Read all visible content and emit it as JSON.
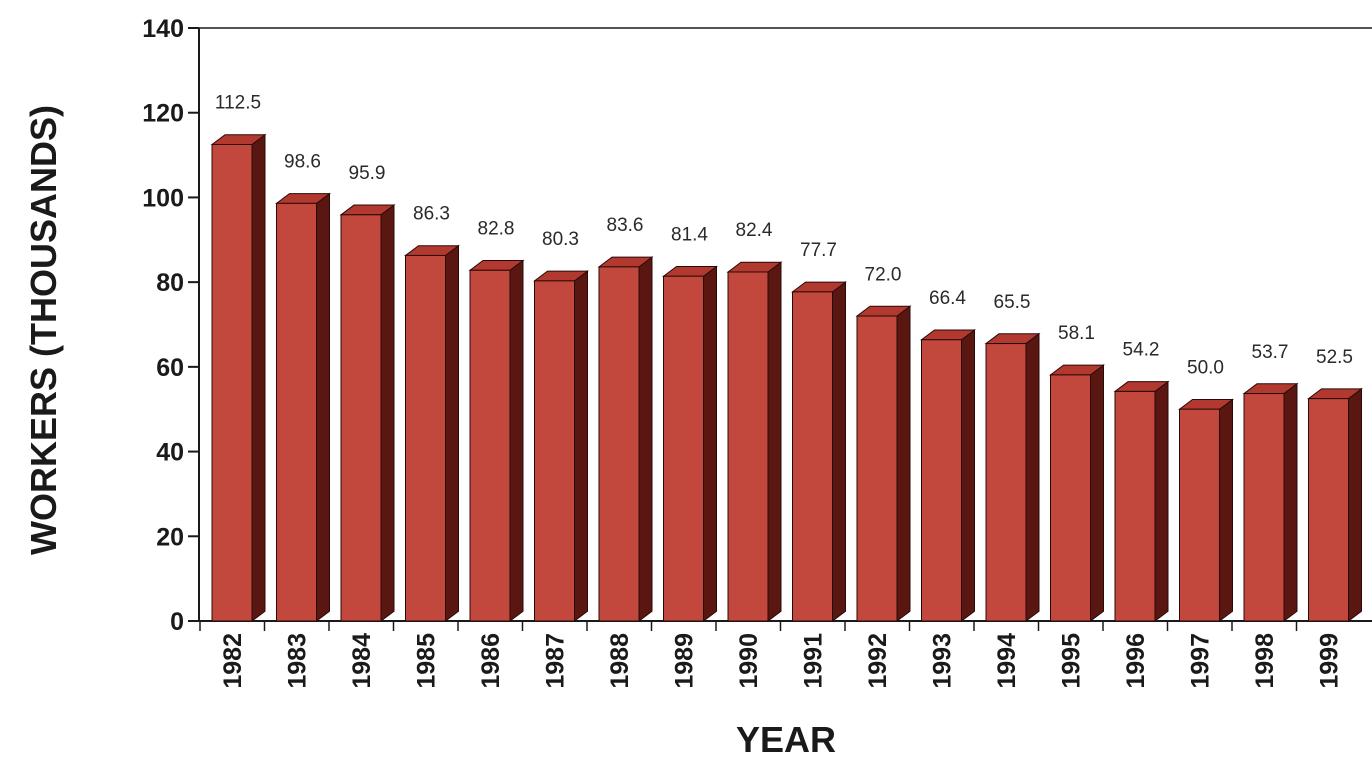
{
  "chart_data": {
    "type": "bar",
    "title": "",
    "xlabel": "YEAR",
    "ylabel": "WORKERS (THOUSANDS)",
    "ylim": [
      0,
      140
    ],
    "yticks": [
      "0",
      "20",
      "40",
      "60",
      "80",
      "100",
      "120",
      "140"
    ],
    "categories": [
      "1982",
      "1983",
      "1984",
      "1985",
      "1986",
      "1987",
      "1988",
      "1989",
      "1990",
      "1991",
      "1992",
      "1993",
      "1994",
      "1995",
      "1996",
      "1997",
      "1998",
      "1999"
    ],
    "values": [
      112.5,
      98.6,
      95.9,
      86.3,
      82.8,
      80.3,
      83.6,
      81.4,
      82.4,
      77.7,
      72.0,
      66.4,
      65.5,
      58.1,
      54.2,
      50.0,
      53.7,
      52.5
    ],
    "value_labels": [
      "112.5",
      "98.6",
      "95.9",
      "86.3",
      "82.8",
      "80.3",
      "83.6",
      "81.4",
      "82.4",
      "77.7",
      "72.0",
      "66.4",
      "65.5",
      "58.1",
      "54.2",
      "50.0",
      "53.7",
      "52.5"
    ],
    "bar_style": "3d",
    "grid": false,
    "legend": "none",
    "colors": {
      "bar_front": "#c2473c",
      "bar_top": "#b2392f",
      "bar_side": "#5a1712",
      "axis": "#1a1a1a"
    }
  }
}
